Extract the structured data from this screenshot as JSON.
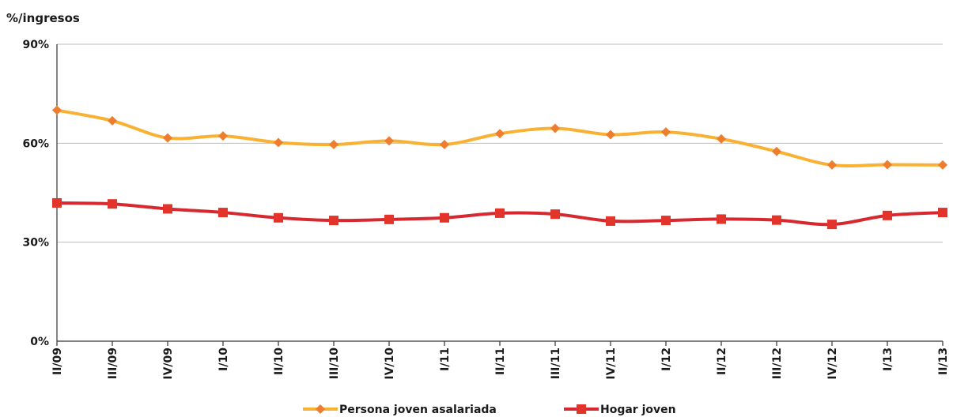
{
  "chart_data": {
    "type": "line",
    "ylabel": "%/ingresos",
    "ylim": [
      0,
      90
    ],
    "yticks": [
      0,
      30,
      60,
      90
    ],
    "ytick_labels": [
      "0%",
      "30%",
      "60%",
      "90%"
    ],
    "grid": true,
    "legend_position": "bottom",
    "categories": [
      "II/09",
      "III/09",
      "IV/09",
      "I/10",
      "II/10",
      "III/10",
      "IV/10",
      "I/11",
      "II/11",
      "III/11",
      "IV/11",
      "I/12",
      "II/12",
      "III/12",
      "IV/12",
      "I/13",
      "II/13"
    ],
    "series": [
      {
        "name": "Persona joven asalariada",
        "color": "#f8b133",
        "marker_color": "#ee7d2d",
        "marker": "diamond",
        "values": [
          70,
          66.8,
          61.6,
          62.2,
          60.2,
          59.6,
          60.7,
          59.6,
          62.9,
          64.5,
          62.6,
          63.4,
          61.3,
          57.5,
          53.4,
          53.5,
          53.4
        ]
      },
      {
        "name": "Hogar joven",
        "color": "#d7282f",
        "marker_color": "#e2342b",
        "marker": "square",
        "values": [
          41.9,
          41.6,
          40.1,
          39.0,
          37.4,
          36.6,
          36.9,
          37.4,
          38.8,
          38.5,
          36.4,
          36.6,
          37.0,
          36.7,
          35.4,
          38.1,
          39.0
        ]
      }
    ]
  }
}
